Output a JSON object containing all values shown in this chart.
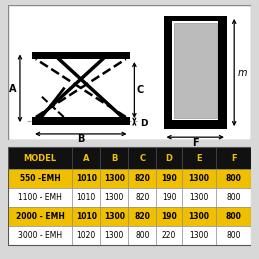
{
  "overall_bg": "#d8d8d8",
  "diagram_bg": "#ffffff",
  "table_header_bg": "#111111",
  "table_header_fg": "#f0c000",
  "row_highlight_bg": "#f0c000",
  "row_normal_bg": "#ffffff",
  "row_highlight_fg": "#000000",
  "row_normal_fg": "#000000",
  "columns": [
    "MODEL",
    "A",
    "B",
    "C",
    "D",
    "E",
    "F"
  ],
  "rows": [
    {
      "model": "550 -EMH",
      "A": "1010",
      "B": "1300",
      "C": "820",
      "D": "190",
      "E": "1300",
      "F": "800",
      "highlight": true
    },
    {
      "model": "1100 - EMH",
      "A": "1010",
      "B": "1300",
      "C": "820",
      "D": "190",
      "E": "1300",
      "F": "800",
      "highlight": false
    },
    {
      "model": "2000 - EMH",
      "A": "1010",
      "B": "1300",
      "C": "820",
      "D": "190",
      "E": "1300",
      "F": "800",
      "highlight": true
    },
    {
      "model": "3000 - EMH",
      "A": "1020",
      "B": "1300",
      "C": "800",
      "D": "220",
      "E": "1300",
      "F": "800",
      "highlight": false
    }
  ]
}
